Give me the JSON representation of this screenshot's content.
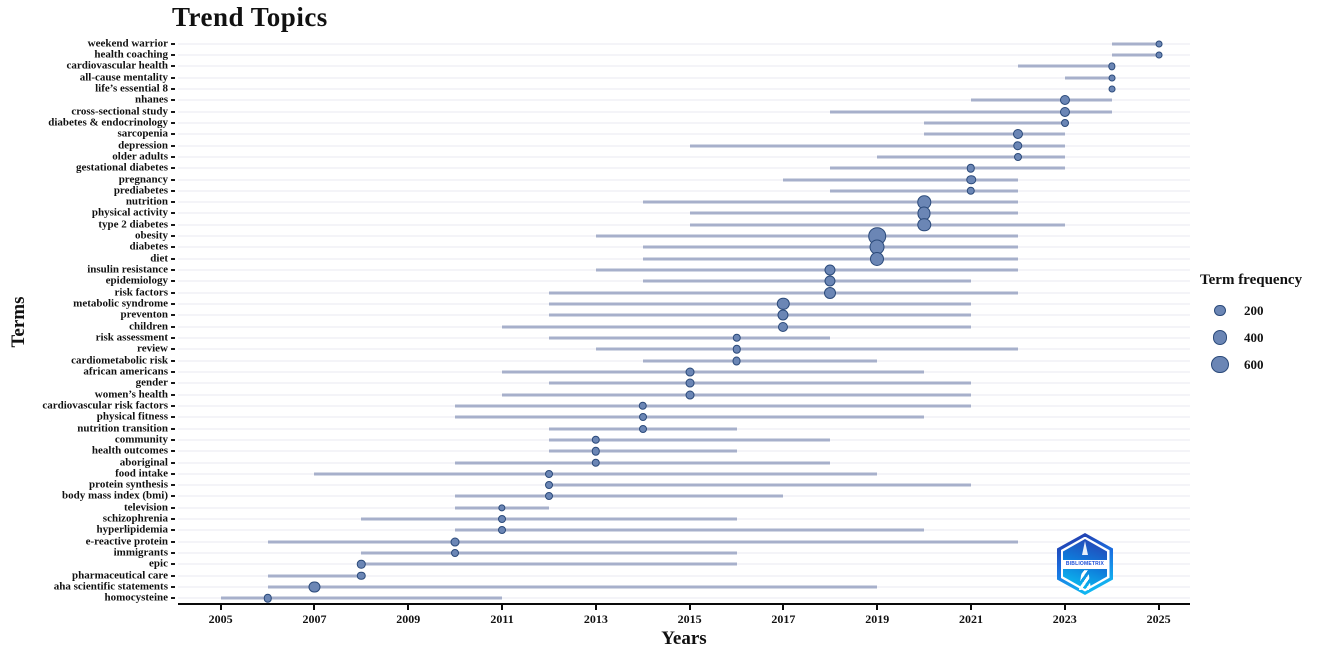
{
  "title": "Trend Topics",
  "logo": {
    "text": "BIBLIOMETRIX"
  },
  "colors": {
    "dot_fill": "#6b86b5",
    "dot_border": "#2b4a7a",
    "range_line": "#a7b0cb",
    "gridline": "#eaeaf0",
    "axis": "#0a0a0a"
  },
  "chart_data": {
    "type": "scatter",
    "title": "Trend Topics",
    "xlabel": "Years",
    "ylabel": "Terms",
    "legend_title": "Term frequency",
    "legend_values": [
      200,
      400,
      600
    ],
    "legend_position": "right",
    "grid": true,
    "x_ticks": [
      2005,
      2007,
      2009,
      2011,
      2013,
      2015,
      2017,
      2019,
      2021,
      2023,
      2025
    ],
    "xlim": [
      2004.09,
      2025.67
    ],
    "note": "Each term has a horizontal line from first-quartile year (q1) to third-quartile year (q3) and a dot at the median year sized by term frequency.",
    "terms": [
      {
        "term": "weekend warrior",
        "q1": 2024,
        "med": 2025,
        "q3": 2025,
        "freq": 90
      },
      {
        "term": "health coaching",
        "q1": 2024,
        "med": 2025,
        "q3": 2025,
        "freq": 90
      },
      {
        "term": "cardiovascular health",
        "q1": 2022,
        "med": 2024,
        "q3": 2024,
        "freq": 100
      },
      {
        "term": "all-cause mentality",
        "q1": 2023,
        "med": 2024,
        "q3": 2024,
        "freq": 90
      },
      {
        "term": "life’s essential 8",
        "q1": 2024,
        "med": 2024,
        "q3": 2024,
        "freq": 90
      },
      {
        "term": "nhanes",
        "q1": 2021,
        "med": 2023,
        "q3": 2024,
        "freq": 190
      },
      {
        "term": "cross-sectional study",
        "q1": 2018,
        "med": 2023,
        "q3": 2024,
        "freq": 190
      },
      {
        "term": "diabetes & endocrinology",
        "q1": 2020,
        "med": 2023,
        "q3": 2023,
        "freq": 120
      },
      {
        "term": "sarcopenia",
        "q1": 2020,
        "med": 2022,
        "q3": 2023,
        "freq": 190
      },
      {
        "term": "depression",
        "q1": 2015,
        "med": 2022,
        "q3": 2023,
        "freq": 170
      },
      {
        "term": "older adults",
        "q1": 2019,
        "med": 2022,
        "q3": 2023,
        "freq": 120
      },
      {
        "term": "gestational diabetes",
        "q1": 2018,
        "med": 2021,
        "q3": 2023,
        "freq": 135
      },
      {
        "term": "pregnancy",
        "q1": 2017,
        "med": 2021,
        "q3": 2022,
        "freq": 170
      },
      {
        "term": "prediabetes",
        "q1": 2018,
        "med": 2021,
        "q3": 2022,
        "freq": 135
      },
      {
        "term": "nutrition",
        "q1": 2014,
        "med": 2020,
        "q3": 2022,
        "freq": 340
      },
      {
        "term": "physical activity",
        "q1": 2015,
        "med": 2020,
        "q3": 2022,
        "freq": 320
      },
      {
        "term": "type 2 diabetes",
        "q1": 2015,
        "med": 2020,
        "q3": 2023,
        "freq": 340
      },
      {
        "term": "obesity",
        "q1": 2013,
        "med": 2019,
        "q3": 2022,
        "freq": 580
      },
      {
        "term": "diabetes",
        "q1": 2014,
        "med": 2019,
        "q3": 2022,
        "freq": 420
      },
      {
        "term": "diet",
        "q1": 2014,
        "med": 2019,
        "q3": 2022,
        "freq": 370
      },
      {
        "term": "insulin resistance",
        "q1": 2013,
        "med": 2018,
        "q3": 2022,
        "freq": 230
      },
      {
        "term": "epidemiology",
        "q1": 2014,
        "med": 2018,
        "q3": 2021,
        "freq": 230
      },
      {
        "term": "risk factors",
        "q1": 2012,
        "med": 2018,
        "q3": 2022,
        "freq": 270
      },
      {
        "term": "metabolic syndrome",
        "q1": 2012,
        "med": 2017,
        "q3": 2021,
        "freq": 290
      },
      {
        "term": "preventon",
        "q1": 2012,
        "med": 2017,
        "q3": 2021,
        "freq": 230
      },
      {
        "term": "children",
        "q1": 2011,
        "med": 2017,
        "q3": 2021,
        "freq": 190
      },
      {
        "term": "risk assessment",
        "q1": 2012,
        "med": 2016,
        "q3": 2018,
        "freq": 135
      },
      {
        "term": "review",
        "q1": 2013,
        "med": 2016,
        "q3": 2022,
        "freq": 135
      },
      {
        "term": "cardiometabolic risk",
        "q1": 2014,
        "med": 2016,
        "q3": 2019,
        "freq": 150
      },
      {
        "term": "african americans",
        "q1": 2011,
        "med": 2015,
        "q3": 2020,
        "freq": 150
      },
      {
        "term": "gender",
        "q1": 2012,
        "med": 2015,
        "q3": 2021,
        "freq": 150
      },
      {
        "term": "women’s health",
        "q1": 2011,
        "med": 2015,
        "q3": 2021,
        "freq": 150
      },
      {
        "term": "cardiovascular risk factors",
        "q1": 2010,
        "med": 2014,
        "q3": 2021,
        "freq": 135
      },
      {
        "term": "physical fitness",
        "q1": 2010,
        "med": 2014,
        "q3": 2020,
        "freq": 120
      },
      {
        "term": "nutrition transition",
        "q1": 2012,
        "med": 2014,
        "q3": 2016,
        "freq": 120
      },
      {
        "term": "community",
        "q1": 2012,
        "med": 2013,
        "q3": 2018,
        "freq": 135
      },
      {
        "term": "health outcomes",
        "q1": 2012,
        "med": 2013,
        "q3": 2016,
        "freq": 135
      },
      {
        "term": "aboriginal",
        "q1": 2010,
        "med": 2013,
        "q3": 2018,
        "freq": 135
      },
      {
        "term": "food intake",
        "q1": 2007,
        "med": 2012,
        "q3": 2019,
        "freq": 120
      },
      {
        "term": "protein synthesis",
        "q1": 2012,
        "med": 2012,
        "q3": 2021,
        "freq": 120
      },
      {
        "term": "body mass index (bmi)",
        "q1": 2010,
        "med": 2012,
        "q3": 2017,
        "freq": 120
      },
      {
        "term": "television",
        "q1": 2010,
        "med": 2011,
        "q3": 2012,
        "freq": 100
      },
      {
        "term": "schizophrenia",
        "q1": 2008,
        "med": 2011,
        "q3": 2016,
        "freq": 120
      },
      {
        "term": "hyperlipidemia",
        "q1": 2010,
        "med": 2011,
        "q3": 2020,
        "freq": 120
      },
      {
        "term": "e-reactive protein",
        "q1": 2006,
        "med": 2010,
        "q3": 2022,
        "freq": 150
      },
      {
        "term": "immigrants",
        "q1": 2008,
        "med": 2010,
        "q3": 2016,
        "freq": 120
      },
      {
        "term": "epic",
        "q1": 2008,
        "med": 2008,
        "q3": 2016,
        "freq": 135
      },
      {
        "term": "pharmaceutical care",
        "q1": 2006,
        "med": 2008,
        "q3": 2008,
        "freq": 135
      },
      {
        "term": "aha scientific statements",
        "q1": 2006,
        "med": 2007,
        "q3": 2019,
        "freq": 230
      },
      {
        "term": "homocysteine",
        "q1": 2005,
        "med": 2006,
        "q3": 2011,
        "freq": 135
      }
    ]
  }
}
